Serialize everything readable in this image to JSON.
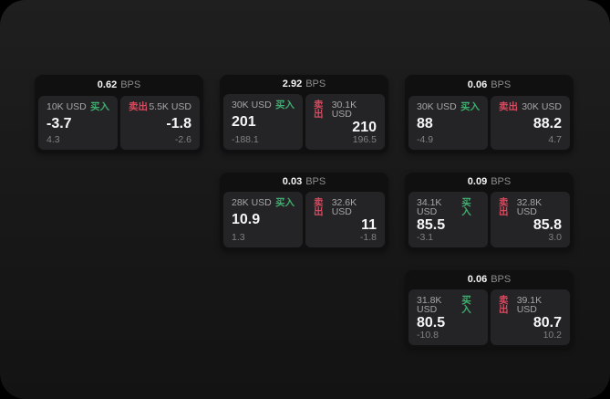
{
  "labels": {
    "buy": "买入",
    "sell": "卖出",
    "bps_unit": "BPS"
  },
  "colors": {
    "buy": "#3fae6e",
    "sell": "#d84a5f",
    "price_text": "#f5f5f5",
    "muted_text": "#8c8c8c",
    "card_bg": "#101011",
    "panel_bg": "#242427",
    "frame_bg": "#191919"
  },
  "cards": [
    {
      "row": 1,
      "col": 1,
      "bps": "0.62",
      "buy": {
        "size": "10K USD",
        "price": "-3.7",
        "delta": "4.3"
      },
      "sell": {
        "size": "5.5K USD",
        "price": "-1.8",
        "delta": "-2.6"
      }
    },
    {
      "row": 1,
      "col": 2,
      "bps": "2.92",
      "buy": {
        "size": "30K USD",
        "price": "201",
        "delta": "-188.1"
      },
      "sell": {
        "size": "30.1K USD",
        "price": "210",
        "delta": "196.5"
      }
    },
    {
      "row": 1,
      "col": 3,
      "bps": "0.06",
      "buy": {
        "size": "30K USD",
        "price": "88",
        "delta": "-4.9"
      },
      "sell": {
        "size": "30K USD",
        "price": "88.2",
        "delta": "4.7"
      }
    },
    {
      "row": 2,
      "col": 2,
      "bps": "0.03",
      "buy": {
        "size": "28K USD",
        "price": "10.9",
        "delta": "1.3"
      },
      "sell": {
        "size": "32.6K USD",
        "price": "11",
        "delta": "-1.8"
      }
    },
    {
      "row": 2,
      "col": 3,
      "bps": "0.09",
      "buy": {
        "size": "34.1K USD",
        "price": "85.5",
        "delta": "-3.1"
      },
      "sell": {
        "size": "32.8K USD",
        "price": "85.8",
        "delta": "3.0"
      }
    },
    {
      "row": 3,
      "col": 3,
      "bps": "0.06",
      "buy": {
        "size": "31.8K USD",
        "price": "80.5",
        "delta": "-10.8"
      },
      "sell": {
        "size": "39.1K USD",
        "price": "80.7",
        "delta": "10.2"
      }
    }
  ]
}
